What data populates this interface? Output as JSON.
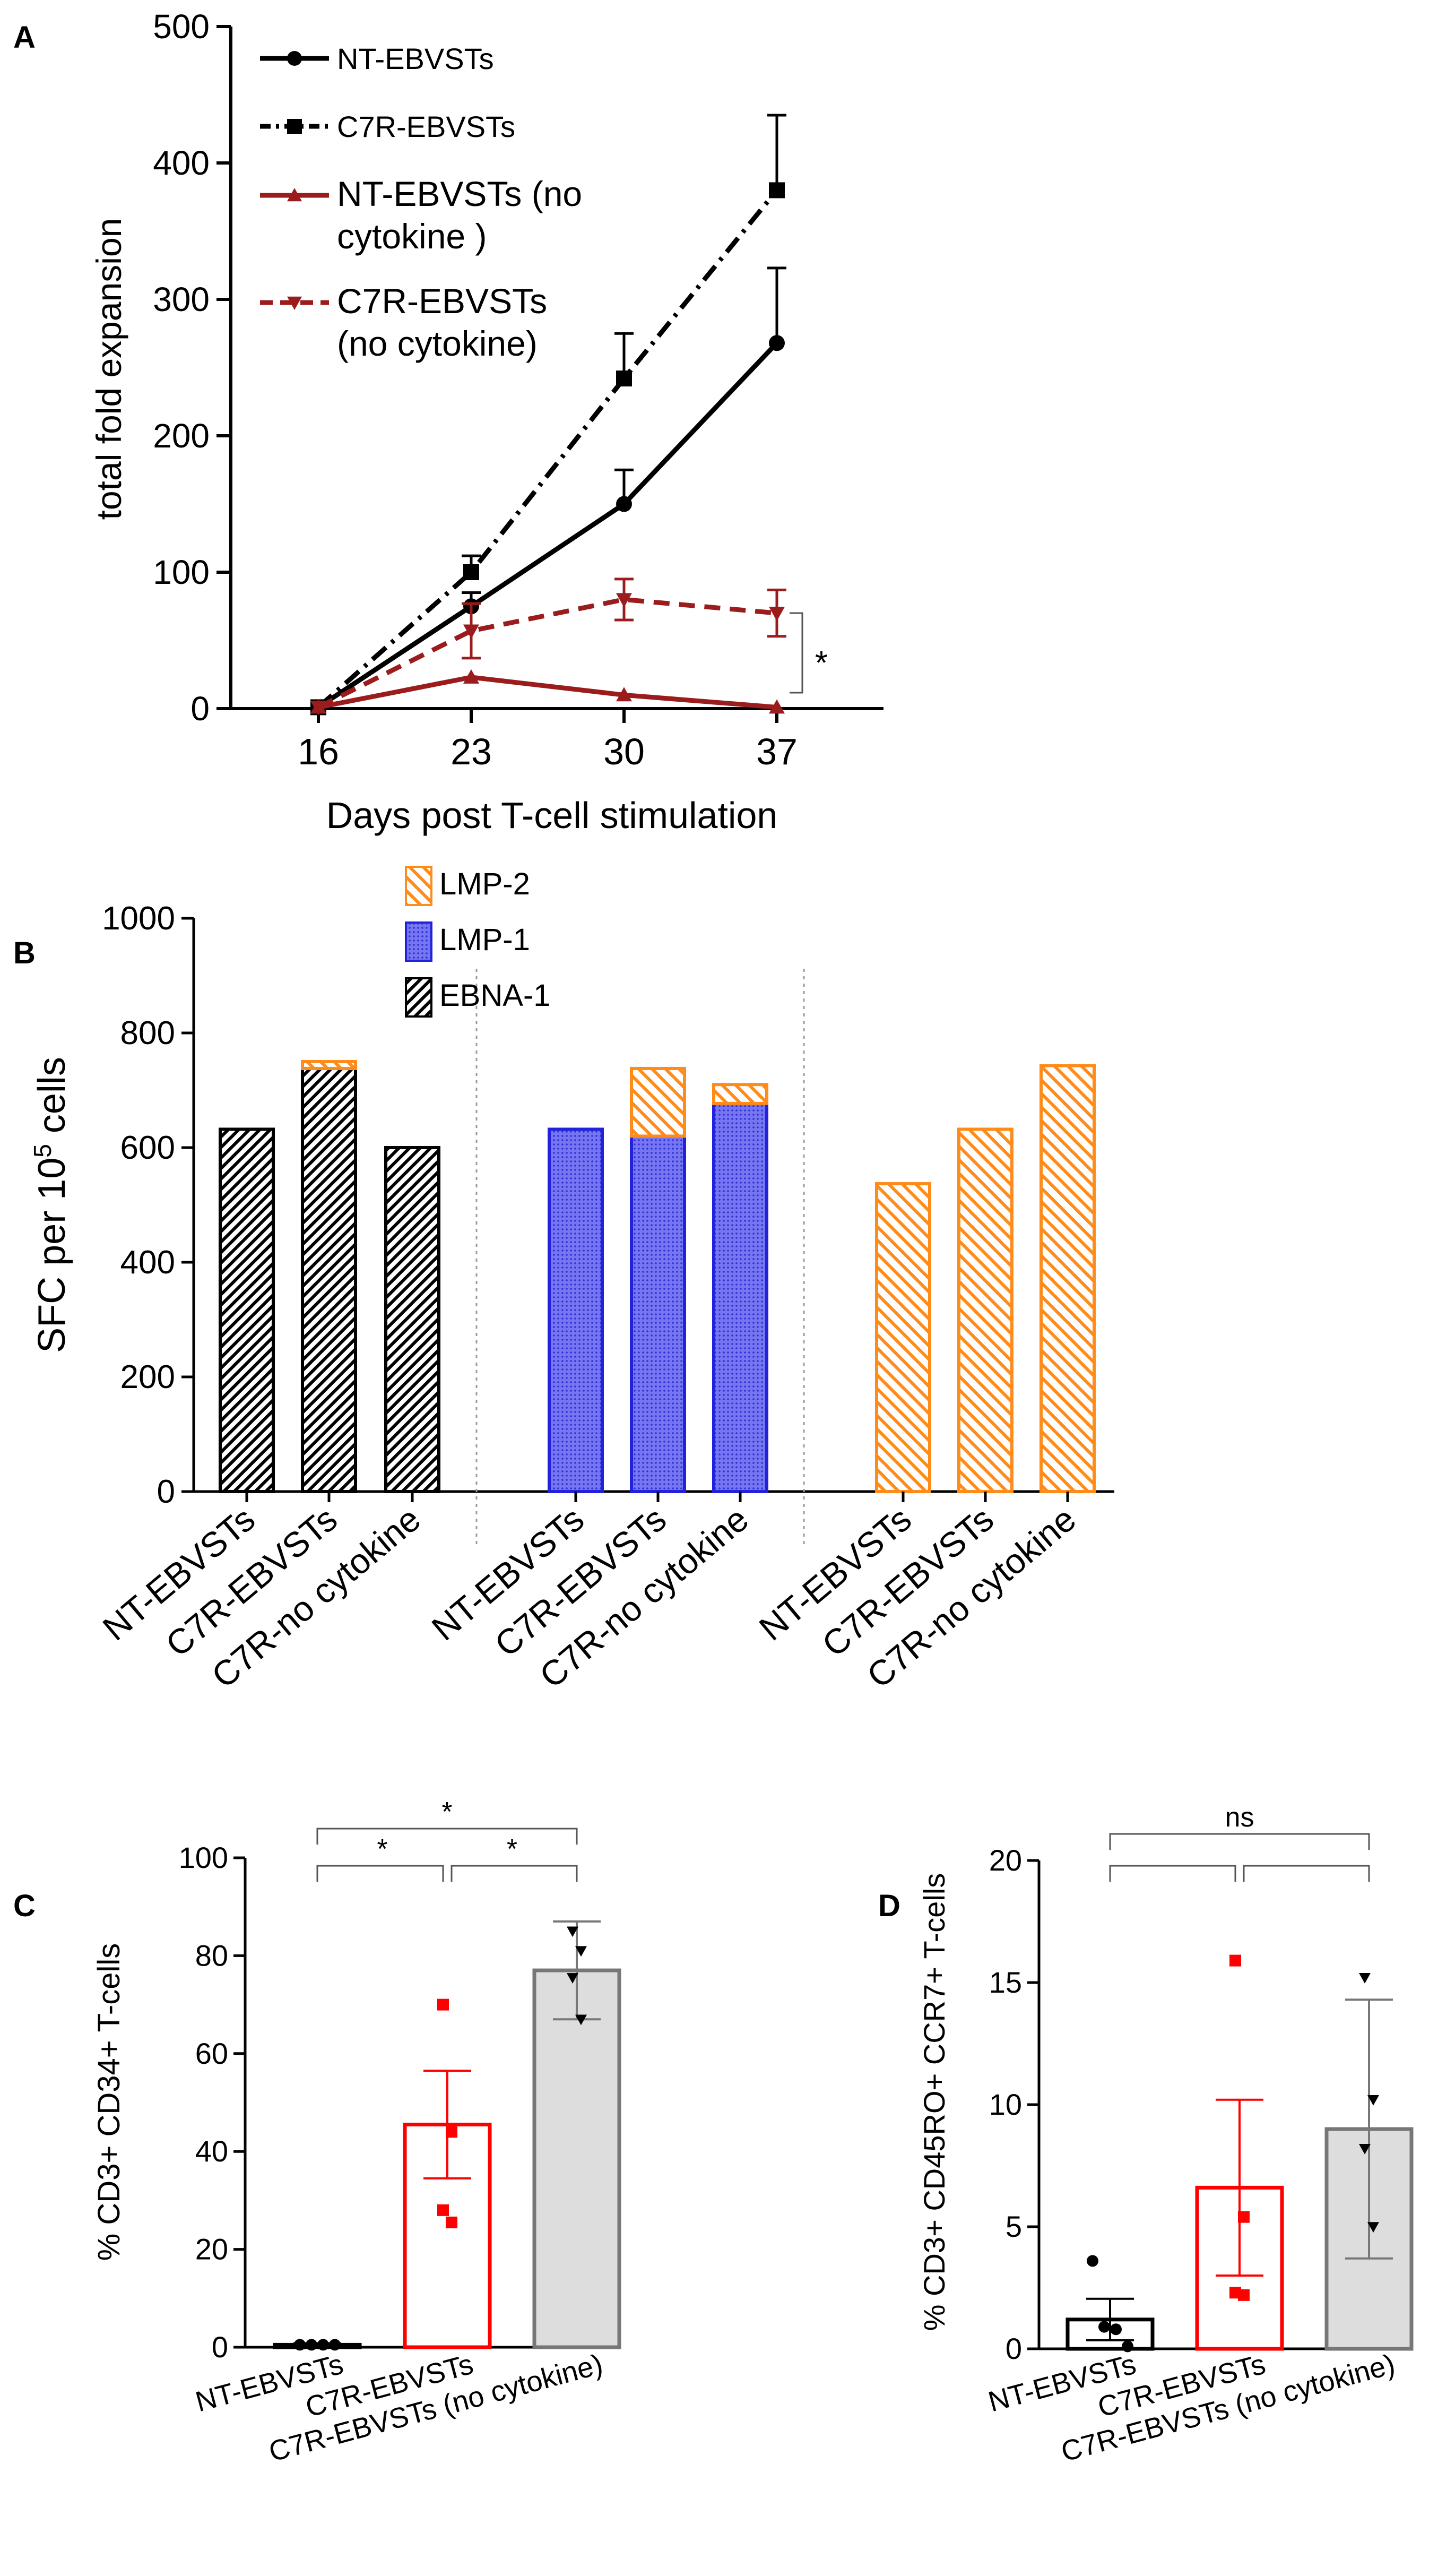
{
  "chart_data": [
    {
      "panel": "A",
      "type": "line",
      "xlabel": "Days post T-cell stimulation",
      "ylabel": "total fold expansion",
      "x": [
        16,
        23,
        30,
        37
      ],
      "x_ticks": [
        "16",
        "23",
        "30",
        "37"
      ],
      "ylim": [
        0,
        500
      ],
      "y_ticks": [
        "0",
        "100",
        "200",
        "300",
        "400",
        "500"
      ],
      "series": [
        {
          "name": "NT-EBVSTs",
          "color": "#000000",
          "marker": "circle",
          "dash": "solid",
          "values": [
            1,
            75,
            150,
            268
          ],
          "err": [
            0,
            10,
            25,
            55
          ]
        },
        {
          "name": "C7R-EBVSTs",
          "color": "#000000",
          "marker": "square",
          "dash": "dashdot",
          "values": [
            1,
            100,
            242,
            380
          ],
          "err": [
            0,
            12,
            33,
            55
          ]
        },
        {
          "name": "NT-EBVSTs (no cytokine )",
          "label_lines": [
            "NT-EBVSTs (no",
            "cytokine )"
          ],
          "color": "#9b1c1c",
          "marker": "triangle-up",
          "dash": "solid",
          "values": [
            1,
            23,
            10,
            1
          ],
          "err": [
            0,
            0,
            0,
            0
          ]
        },
        {
          "name": "C7R-EBVSTs (no cytokine)",
          "label_lines": [
            "C7R-EBVSTs",
            "(no cytokine)"
          ],
          "color": "#9b1c1c",
          "marker": "triangle-down",
          "dash": "dashed",
          "values": [
            1,
            57,
            80,
            70
          ],
          "err": [
            0,
            20,
            15,
            17
          ]
        }
      ],
      "annotations": [
        "*"
      ]
    },
    {
      "panel": "B",
      "type": "bar",
      "ylabel": "SFC per 10^5 cells",
      "ylabel_parts": [
        "SFC per 10",
        "5",
        " cells"
      ],
      "ylim": [
        0,
        1000
      ],
      "y_ticks": [
        "0",
        "200",
        "400",
        "600",
        "800",
        "1000"
      ],
      "legend": [
        {
          "name": "LMP-2",
          "color": "#ff8c1a",
          "pattern": "hatch"
        },
        {
          "name": "LMP-1",
          "color": "#2222dd",
          "pattern": "dots"
        },
        {
          "name": "EBNA-1",
          "color": "#000000",
          "pattern": "hatch-dense"
        }
      ],
      "groups": [
        {
          "categories": [
            "NT-EBVSTs",
            "C7R-EBVSTs",
            "C7R-no cytokine"
          ],
          "stacks": [
            [
              {
                "series": "EBNA-1",
                "value": 632
              }
            ],
            [
              {
                "series": "EBNA-1",
                "value": 738
              },
              {
                "series": "LMP-2",
                "value": 12
              }
            ],
            [
              {
                "series": "EBNA-1",
                "value": 600
              }
            ]
          ]
        },
        {
          "categories": [
            "NT-EBVSTs",
            "C7R-EBVSTs",
            "C7R-no cytokine"
          ],
          "stacks": [
            [
              {
                "series": "LMP-1",
                "value": 632
              }
            ],
            [
              {
                "series": "LMP-1",
                "value": 620
              },
              {
                "series": "LMP-2",
                "value": 118
              }
            ],
            [
              {
                "series": "LMP-1",
                "value": 677
              },
              {
                "series": "LMP-2",
                "value": 33
              }
            ]
          ]
        },
        {
          "categories": [
            "NT-EBVSTs",
            "C7R-EBVSTs",
            "C7R-no cytokine"
          ],
          "stacks": [
            [
              {
                "series": "LMP-2",
                "value": 537
              }
            ],
            [
              {
                "series": "LMP-2",
                "value": 632
              }
            ],
            [
              {
                "series": "LMP-2",
                "value": 743
              }
            ]
          ]
        }
      ]
    },
    {
      "panel": "C",
      "type": "bar",
      "ylabel": "% CD3+ CD34+ T-cells",
      "ylim": [
        0,
        100
      ],
      "y_ticks": [
        "0",
        "20",
        "40",
        "60",
        "80",
        "100"
      ],
      "categories": [
        "NT-EBVSTs",
        "C7R-EBVSTs",
        "C7R-EBVSTs (no cytokine)"
      ],
      "bar_colors": [
        "#000000",
        "#ff0000",
        "#777777"
      ],
      "bar_fills": [
        "#ffffff",
        "#ffffff",
        "#dddddd"
      ],
      "values": [
        0.5,
        45.5,
        77
      ],
      "sem": [
        0.3,
        11,
        10
      ],
      "points": [
        [
          0.5,
          0.5,
          0.5,
          0.5
        ],
        [
          70,
          44,
          28,
          25.5
        ],
        [
          85,
          81,
          75.5,
          67
        ]
      ],
      "point_markers": [
        "circle",
        "square",
        "triangle-down"
      ],
      "significance": [
        {
          "from": 0,
          "to": 1,
          "label": "*"
        },
        {
          "from": 1,
          "to": 2,
          "label": "*"
        },
        {
          "from": 0,
          "to": 2,
          "label": "*"
        }
      ]
    },
    {
      "panel": "D",
      "type": "bar",
      "ylabel": "% CD3+ CD45RO+ CCR7+ T-cells",
      "ylim": [
        0,
        20
      ],
      "y_ticks": [
        "0",
        "5",
        "10",
        "15",
        "20"
      ],
      "categories": [
        "NT-EBVSTs",
        "C7R-EBVSTs",
        "C7R-EBVSTs (no cytokine)"
      ],
      "bar_colors": [
        "#000000",
        "#ff0000",
        "#777777"
      ],
      "bar_fills": [
        "#ffffff",
        "#ffffff",
        "#dddddd"
      ],
      "values": [
        1.2,
        6.6,
        9
      ],
      "sem": [
        0.85,
        3.6,
        5.3
      ],
      "points": [
        [
          3.6,
          0.9,
          0.8,
          0.1
        ],
        [
          15.9,
          5.4,
          2.3,
          2.2
        ],
        [
          15.2,
          10.2,
          8.2,
          5
        ]
      ],
      "point_markers": [
        "circle",
        "square",
        "triangle-down"
      ],
      "significance": [
        {
          "from": 0,
          "to": 1,
          "label": ""
        },
        {
          "from": 1,
          "to": 2,
          "label": ""
        },
        {
          "from": 0,
          "to": 2,
          "label": "ns"
        }
      ]
    }
  ],
  "panel_labels": {
    "a": "A",
    "b": "B",
    "c": "C",
    "d": "D"
  }
}
